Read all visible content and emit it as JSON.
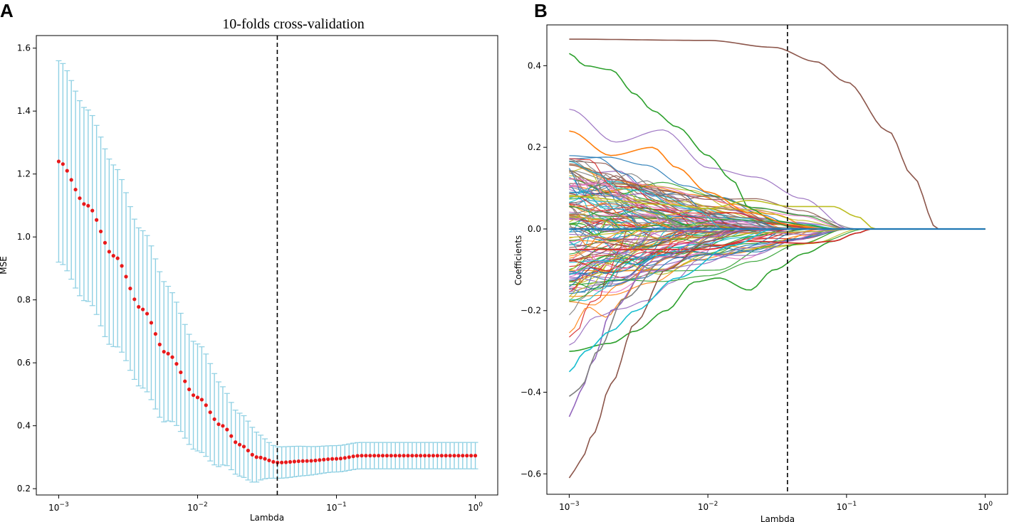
{
  "chart_data": [
    {
      "panel": "A",
      "type": "scatter",
      "title": "10-folds cross-validation",
      "xlabel": "Lambda",
      "ylabel": "MSE",
      "xscale": "log",
      "xlim": [
        0.00069,
        1.45
      ],
      "ylim": [
        0.18,
        1.64
      ],
      "x_ticks": [
        {
          "base": "10",
          "exp": "−3"
        },
        {
          "base": "10",
          "exp": "−2"
        },
        {
          "base": "10",
          "exp": "−1"
        },
        {
          "base": "10",
          "exp": "0"
        }
      ],
      "y_ticks": [
        "0.2",
        "0.4",
        "0.6",
        "0.8",
        "1.0",
        "1.2",
        "1.4",
        "1.6"
      ],
      "series": [
        {
          "name": "mean MSE",
          "color": "#e8191b",
          "errorbar_color": "#8fd0e3"
        }
      ],
      "curve": {
        "lambda_min": 0.001,
        "lambda_max": 1.0,
        "n_points": 100,
        "mse_control_points": [
          [
            0.001,
            1.24
          ],
          [
            0.0016,
            1.1
          ],
          [
            0.0025,
            0.94
          ],
          [
            0.004,
            0.77
          ],
          [
            0.006,
            0.63
          ],
          [
            0.01,
            0.49
          ],
          [
            0.015,
            0.4
          ],
          [
            0.02,
            0.34
          ],
          [
            0.027,
            0.3
          ],
          [
            0.038,
            0.283
          ],
          [
            0.06,
            0.288
          ],
          [
            0.1,
            0.295
          ],
          [
            0.15,
            0.305
          ],
          [
            1.0,
            0.305
          ]
        ],
        "err_control_points": [
          [
            0.001,
            0.32
          ],
          [
            0.002,
            0.3
          ],
          [
            0.004,
            0.25
          ],
          [
            0.01,
            0.17
          ],
          [
            0.02,
            0.1
          ],
          [
            0.038,
            0.05
          ],
          [
            0.1,
            0.042
          ],
          [
            0.15,
            0.042
          ],
          [
            1.0,
            0.042
          ]
        ]
      },
      "vline_x": 0.0375
    },
    {
      "panel": "B",
      "type": "line",
      "title": "",
      "xlabel": "Lambda",
      "ylabel": "Coefficients",
      "xscale": "log",
      "xlim": [
        0.00069,
        1.45
      ],
      "ylim": [
        -0.65,
        0.5
      ],
      "x_ticks": [
        {
          "base": "10",
          "exp": "−3"
        },
        {
          "base": "10",
          "exp": "−2"
        },
        {
          "base": "10",
          "exp": "−1"
        },
        {
          "base": "10",
          "exp": "0"
        }
      ],
      "y_ticks": [
        "−0.6",
        "−0.4",
        "−0.2",
        "0.0",
        "0.2",
        "0.4"
      ],
      "vline_x": 0.0375,
      "palette": [
        "#1f77b4",
        "#ff7f0e",
        "#2ca02c",
        "#d62728",
        "#9467bd",
        "#8c564b",
        "#e377c2",
        "#7f7f7f",
        "#bcbd22",
        "#17becf"
      ],
      "path_count": 140,
      "series": [
        {
          "name": "brown dominant",
          "color": "#8c564b",
          "points": [
            [
              0.001,
              0.465
            ],
            [
              0.01,
              0.462
            ],
            [
              0.03,
              0.445
            ],
            [
              0.06,
              0.41
            ],
            [
              0.1,
              0.36
            ],
            [
              0.2,
              0.24
            ],
            [
              0.3,
              0.13
            ],
            [
              0.45,
              0.0
            ],
            [
              1.0,
              0.0
            ]
          ]
        },
        {
          "name": "green upper",
          "color": "#2ca02c",
          "points": [
            [
              0.001,
              0.43
            ],
            [
              0.0013,
              0.4
            ],
            [
              0.002,
              0.39
            ],
            [
              0.003,
              0.33
            ],
            [
              0.004,
              0.29
            ],
            [
              0.006,
              0.25
            ],
            [
              0.01,
              0.18
            ],
            [
              0.015,
              0.12
            ],
            [
              0.02,
              0.05
            ],
            [
              0.03,
              0.02
            ],
            [
              0.05,
              0.01
            ],
            [
              0.08,
              0.0
            ]
          ]
        },
        {
          "name": "yellow long",
          "color": "#bcbd22",
          "points": [
            [
              0.001,
              0.08
            ],
            [
              0.005,
              0.06
            ],
            [
              0.01,
              0.05
            ],
            [
              0.02,
              0.07
            ],
            [
              0.04,
              0.055
            ],
            [
              0.08,
              0.055
            ],
            [
              0.12,
              0.03
            ],
            [
              0.16,
              0.0
            ]
          ]
        },
        {
          "name": "green lower",
          "color": "#2ca02c",
          "points": [
            [
              0.001,
              -0.3
            ],
            [
              0.002,
              -0.28
            ],
            [
              0.003,
              -0.25
            ],
            [
              0.005,
              -0.2
            ],
            [
              0.008,
              -0.13
            ],
            [
              0.012,
              -0.12
            ],
            [
              0.02,
              -0.15
            ],
            [
              0.03,
              -0.1
            ],
            [
              0.05,
              -0.06
            ],
            [
              0.08,
              -0.03
            ],
            [
              0.12,
              -0.01
            ],
            [
              0.15,
              0.0
            ]
          ]
        },
        {
          "name": "red lower",
          "color": "#d62728",
          "points": [
            [
              0.001,
              -0.05
            ],
            [
              0.01,
              -0.05
            ],
            [
              0.02,
              -0.03
            ],
            [
              0.05,
              -0.035
            ],
            [
              0.08,
              -0.03
            ],
            [
              0.12,
              -0.01
            ],
            [
              0.15,
              0.0
            ]
          ]
        },
        {
          "name": "brown lower",
          "color": "#8c564b",
          "points": [
            [
              0.001,
              -0.61
            ],
            [
              0.0012,
              -0.57
            ],
            [
              0.0015,
              -0.5
            ],
            [
              0.002,
              -0.38
            ],
            [
              0.003,
              -0.23
            ],
            [
              0.005,
              -0.1
            ],
            [
              0.01,
              -0.03
            ],
            [
              0.02,
              0.0
            ]
          ]
        },
        {
          "name": "purple lower",
          "color": "#9467bd",
          "points": [
            [
              0.001,
              -0.46
            ],
            [
              0.0012,
              -0.4
            ],
            [
              0.0015,
              -0.32
            ],
            [
              0.002,
              -0.2
            ],
            [
              0.004,
              -0.08
            ],
            [
              0.01,
              -0.02
            ],
            [
              0.02,
              0.0
            ]
          ]
        },
        {
          "name": "gray lower",
          "color": "#7f7f7f",
          "points": [
            [
              0.001,
              -0.41
            ],
            [
              0.0012,
              -0.39
            ],
            [
              0.0016,
              -0.3
            ],
            [
              0.0025,
              -0.17
            ],
            [
              0.005,
              -0.07
            ],
            [
              0.015,
              0.0
            ]
          ]
        },
        {
          "name": "cyan lower",
          "color": "#17becf",
          "points": [
            [
              0.001,
              -0.35
            ],
            [
              0.0013,
              -0.3
            ],
            [
              0.002,
              -0.25
            ],
            [
              0.003,
              -0.2
            ],
            [
              0.006,
              -0.12
            ],
            [
              0.015,
              -0.04
            ],
            [
              0.03,
              0.0
            ]
          ]
        },
        {
          "name": "orange mid",
          "color": "#ff7f0e",
          "points": [
            [
              0.001,
              0.24
            ],
            [
              0.002,
              0.18
            ],
            [
              0.004,
              0.2
            ],
            [
              0.006,
              0.15
            ],
            [
              0.01,
              0.09
            ],
            [
              0.02,
              0.04
            ],
            [
              0.04,
              0.01
            ],
            [
              0.07,
              0.0
            ]
          ]
        },
        {
          "name": "blue zero",
          "color": "#1f77b4",
          "points": [
            [
              0.001,
              0.0
            ],
            [
              1.0,
              0.0
            ]
          ]
        }
      ]
    }
  ]
}
